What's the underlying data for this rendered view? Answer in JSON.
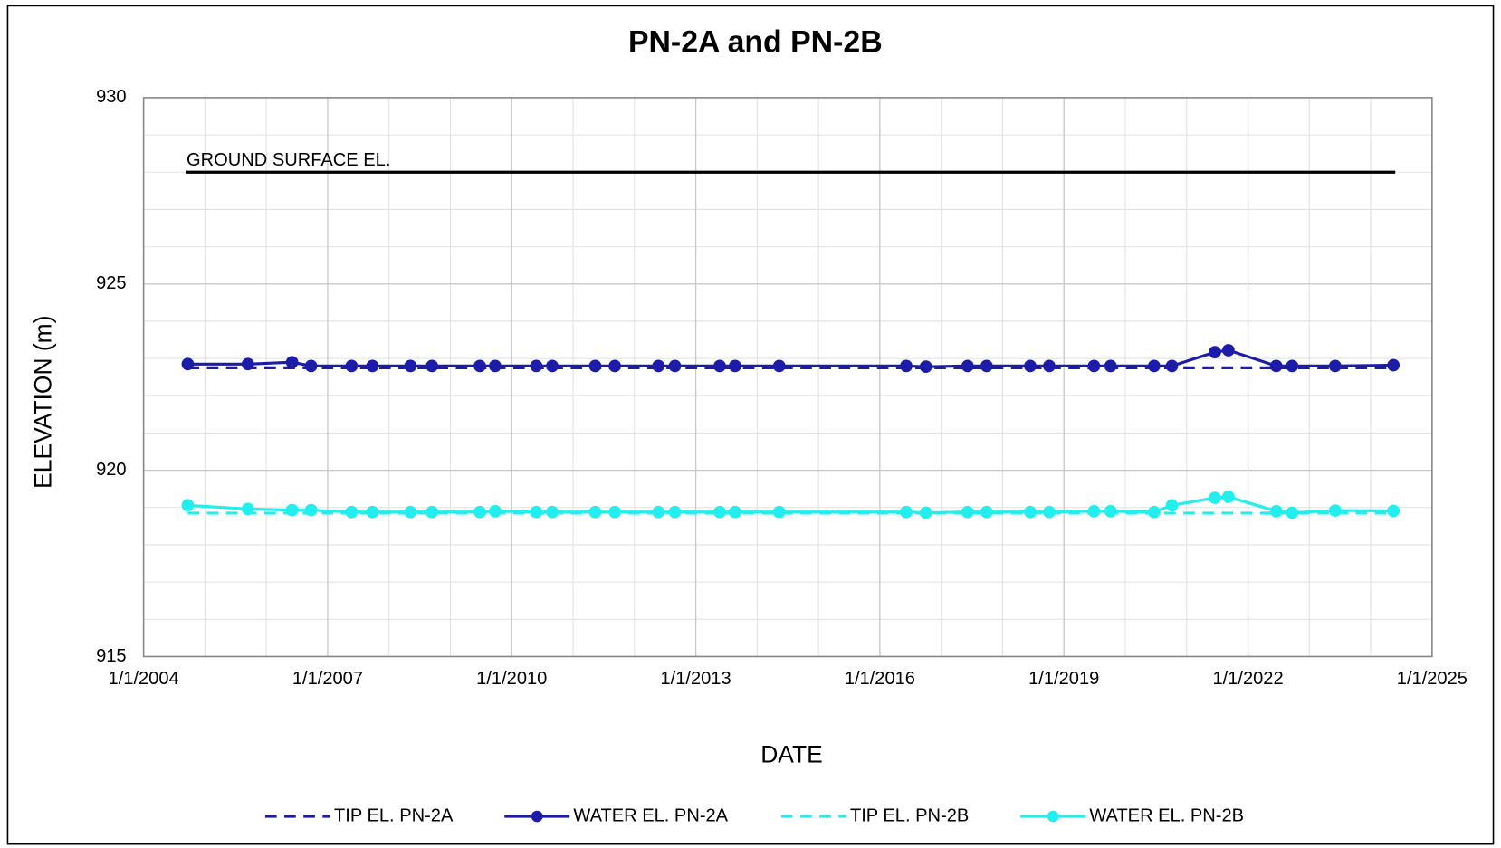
{
  "chart_data": {
    "type": "line",
    "title": "PN-2A and PN-2B",
    "x_label": "DATE",
    "y_label": "ELEVATION (m)",
    "xlim": [
      2004,
      2025
    ],
    "xticks": [
      {
        "value": 2004,
        "label": "1/1/2004"
      },
      {
        "value": 2007,
        "label": "1/1/2007"
      },
      {
        "value": 2010,
        "label": "1/1/2010"
      },
      {
        "value": 2013,
        "label": "1/1/2013"
      },
      {
        "value": 2016,
        "label": "1/1/2016"
      },
      {
        "value": 2019,
        "label": "1/1/2019"
      },
      {
        "value": 2022,
        "label": "1/1/2022"
      },
      {
        "value": 2025,
        "label": "1/1/2025"
      }
    ],
    "ylim": [
      915,
      930
    ],
    "yticks": [
      915,
      920,
      925,
      930
    ],
    "grid": true,
    "minor_grid_step": {
      "x": 1,
      "y": 1
    },
    "legend": "bottom",
    "ground_surface": {
      "label": "GROUND SURFACE EL.",
      "value": 928,
      "x": [
        2004.7,
        2024.4
      ],
      "color": "#000000"
    },
    "series": [
      {
        "name": "TIP EL. PN-2A",
        "color": "#1c1ca8",
        "dash": true,
        "marker": false,
        "x": [
          2004.72,
          2024.37
        ],
        "values": [
          922.75,
          922.75
        ]
      },
      {
        "name": "WATER EL. PN-2A",
        "color": "#1c1ca8",
        "dash": false,
        "marker": true,
        "x": [
          2004.72,
          2005.7,
          2006.42,
          2006.73,
          2007.39,
          2007.73,
          2008.35,
          2008.7,
          2009.48,
          2009.73,
          2010.4,
          2010.66,
          2011.36,
          2011.68,
          2012.39,
          2012.66,
          2013.39,
          2013.64,
          2014.36,
          2016.43,
          2016.75,
          2017.43,
          2017.74,
          2018.45,
          2018.76,
          2019.49,
          2019.76,
          2020.47,
          2020.76,
          2021.46,
          2021.68,
          2022.46,
          2022.72,
          2023.42,
          2024.37
        ],
        "values": [
          922.85,
          922.85,
          922.9,
          922.8,
          922.8,
          922.8,
          922.8,
          922.8,
          922.8,
          922.8,
          922.8,
          922.8,
          922.8,
          922.8,
          922.8,
          922.8,
          922.8,
          922.8,
          922.8,
          922.8,
          922.78,
          922.8,
          922.8,
          922.8,
          922.8,
          922.8,
          922.8,
          922.8,
          922.8,
          923.17,
          923.22,
          922.8,
          922.8,
          922.8,
          922.82
        ]
      },
      {
        "name": "TIP EL. PN-2B",
        "color": "#22eeee",
        "dash": true,
        "marker": false,
        "x": [
          2004.72,
          2024.37
        ],
        "values": [
          918.85,
          918.85
        ]
      },
      {
        "name": "WATER EL. PN-2B",
        "color": "#22eeee",
        "dash": false,
        "marker": true,
        "x": [
          2004.72,
          2005.7,
          2006.42,
          2006.73,
          2007.39,
          2007.73,
          2008.35,
          2008.7,
          2009.48,
          2009.73,
          2010.4,
          2010.66,
          2011.36,
          2011.68,
          2012.39,
          2012.66,
          2013.39,
          2013.64,
          2014.36,
          2016.43,
          2016.75,
          2017.43,
          2017.74,
          2018.45,
          2018.76,
          2019.49,
          2019.76,
          2020.47,
          2020.76,
          2021.46,
          2021.68,
          2022.46,
          2022.72,
          2023.42,
          2024.37
        ],
        "values": [
          919.06,
          918.96,
          918.93,
          918.93,
          918.88,
          918.88,
          918.88,
          918.88,
          918.88,
          918.9,
          918.88,
          918.88,
          918.88,
          918.88,
          918.88,
          918.88,
          918.88,
          918.88,
          918.88,
          918.88,
          918.86,
          918.88,
          918.88,
          918.88,
          918.88,
          918.9,
          918.9,
          918.88,
          919.06,
          919.26,
          919.29,
          918.9,
          918.86,
          918.92,
          918.91
        ]
      }
    ]
  }
}
